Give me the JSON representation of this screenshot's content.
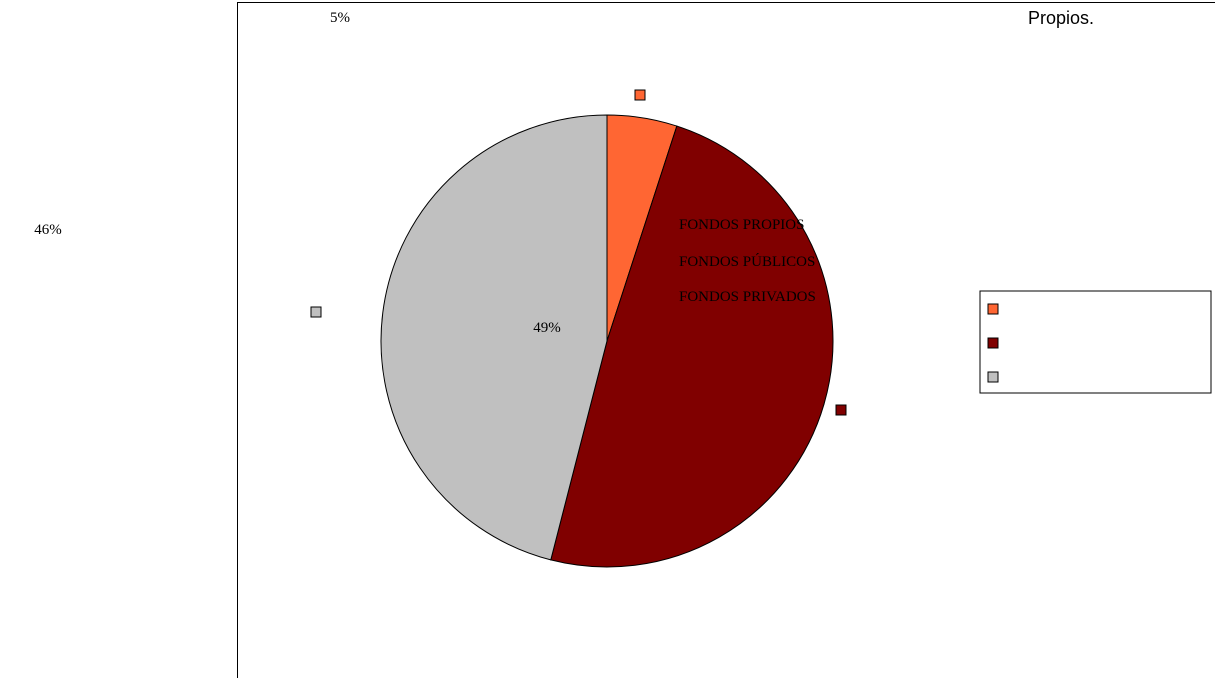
{
  "chart_data": {
    "type": "pie",
    "title": "Propios.",
    "slices": [
      {
        "label": "FONDOS  PROPIOS",
        "value": 5,
        "display": "5%",
        "color": "#ff6633"
      },
      {
        "label": "FONDOS  PÚBLICOS",
        "value": 49,
        "display": "49%",
        "color": "#800000"
      },
      {
        "label": "FONDOS  PRIVADOS",
        "value": 46,
        "display": "46%",
        "color": "#c0c0c0"
      }
    ],
    "legend_position": "right"
  }
}
